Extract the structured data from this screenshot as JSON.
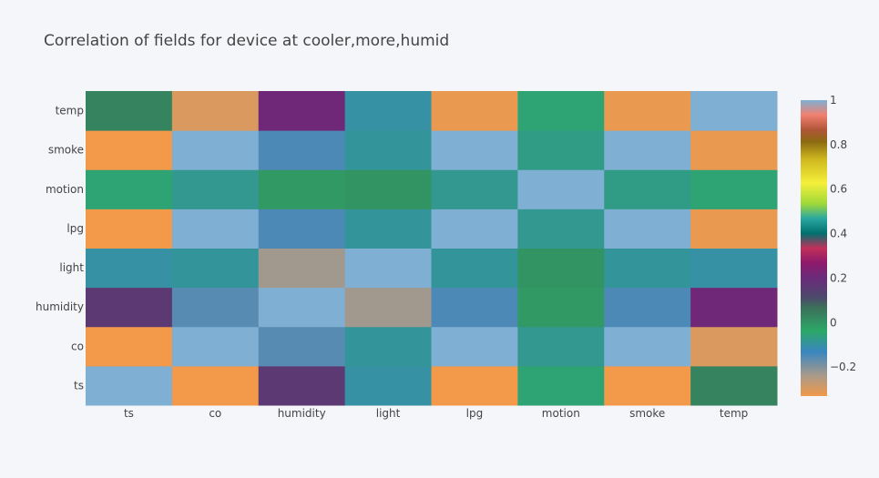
{
  "chart_data": {
    "type": "heatmap",
    "title": "Correlation of fields for device at cooler,more,humid",
    "x_categories": [
      "ts",
      "co",
      "humidity",
      "light",
      "lpg",
      "motion",
      "smoke",
      "temp"
    ],
    "y_categories": [
      "ts",
      "co",
      "humidity",
      "light",
      "lpg",
      "motion",
      "smoke",
      "temp"
    ],
    "z": [
      [
        1.0,
        -0.33,
        0.16,
        -0.1,
        -0.33,
        -0.05,
        -0.33,
        0.03
      ],
      [
        -0.33,
        1.0,
        -0.16,
        -0.09,
        1.0,
        -0.08,
        1.0,
        -0.3
      ],
      [
        0.16,
        -0.16,
        1.0,
        -0.23,
        -0.15,
        -0.01,
        -0.15,
        0.21
      ],
      [
        -0.1,
        -0.09,
        -0.23,
        1.0,
        -0.09,
        0.0,
        -0.09,
        -0.1
      ],
      [
        -0.33,
        1.0,
        -0.15,
        -0.09,
        1.0,
        -0.08,
        1.0,
        -0.32
      ],
      [
        -0.05,
        -0.08,
        -0.01,
        0.0,
        -0.08,
        1.0,
        -0.07,
        -0.05
      ],
      [
        -0.33,
        1.0,
        -0.15,
        -0.09,
        1.0,
        -0.07,
        1.0,
        -0.32
      ],
      [
        0.03,
        -0.3,
        0.21,
        -0.1,
        -0.32,
        -0.05,
        -0.32,
        1.0
      ]
    ],
    "zmin": -0.33,
    "zmax": 1.0,
    "colorbar": {
      "ticks": [
        1,
        0.8,
        0.6,
        0.4,
        0.2,
        0,
        -0.2
      ],
      "tick_labels": [
        "1",
        "0.8",
        "0.6",
        "0.4",
        "0.2",
        "0",
        "−0.2"
      ],
      "colorscale": [
        [
          0.0,
          "#f2994a"
        ],
        [
          0.07,
          "#a8998a"
        ],
        [
          0.15,
          "#3986c0"
        ],
        [
          0.22,
          "#2ca867"
        ],
        [
          0.3,
          "#3c6f5a"
        ],
        [
          0.33,
          "#4b4b6a"
        ],
        [
          0.4,
          "#6b2a7a"
        ],
        [
          0.45,
          "#8e1a6b"
        ],
        [
          0.5,
          "#c0305a"
        ],
        [
          0.55,
          "#00706e"
        ],
        [
          0.6,
          "#2aa7a0"
        ],
        [
          0.65,
          "#9fd93a"
        ],
        [
          0.72,
          "#f4ef3a"
        ],
        [
          0.8,
          "#cfb81f"
        ],
        [
          0.86,
          "#8c6a12"
        ],
        [
          0.9,
          "#b05638"
        ],
        [
          0.95,
          "#f08070"
        ],
        [
          1.0,
          "#7fafd2"
        ]
      ]
    },
    "grid": false,
    "legend": "right"
  }
}
